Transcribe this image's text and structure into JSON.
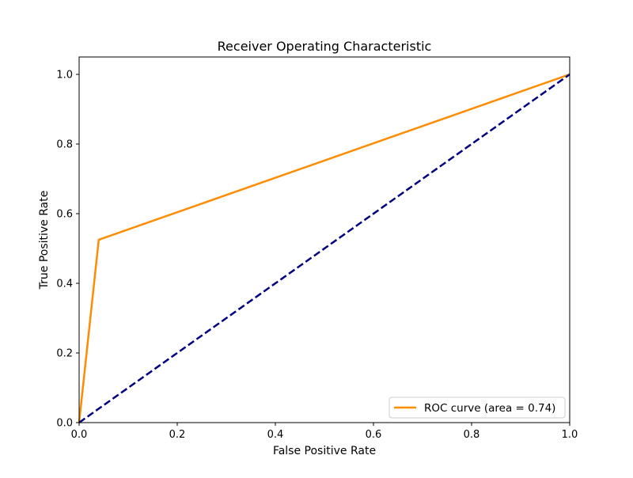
{
  "chart_data": {
    "type": "line",
    "title": "Receiver Operating Characteristic",
    "xlabel": "False Positive Rate",
    "ylabel": "True Positive Rate",
    "xlim": [
      0.0,
      1.0
    ],
    "ylim": [
      0.0,
      1.05
    ],
    "x_ticks": [
      "0.0",
      "0.2",
      "0.4",
      "0.6",
      "0.8",
      "1.0"
    ],
    "y_ticks": [
      "0.0",
      "0.2",
      "0.4",
      "0.6",
      "0.8",
      "1.0"
    ],
    "grid": false,
    "legend_position": "lower-right",
    "series": [
      {
        "name": "ROC curve (area = 0.74)",
        "color": "#ff8c00",
        "style": "solid",
        "x": [
          0.0,
          0.04,
          1.0
        ],
        "y": [
          0.0,
          0.525,
          1.0
        ]
      },
      {
        "color": "#000080",
        "style": "dashed",
        "x": [
          0.0,
          1.0
        ],
        "y": [
          0.0,
          1.0
        ]
      }
    ]
  }
}
